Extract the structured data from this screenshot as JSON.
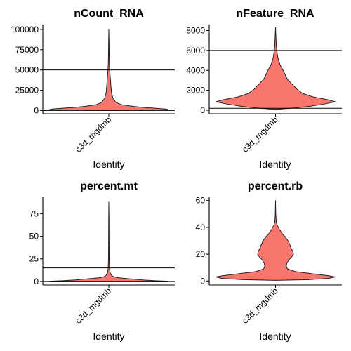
{
  "chart_data": [
    {
      "type": "violin",
      "title": "nCount_RNA",
      "xlabel": "Identity",
      "ylabel": "",
      "categories": [
        "c3d_mgdmb"
      ],
      "y_ticks": [
        0,
        25000,
        50000,
        75000,
        100000
      ],
      "y_tick_labels": [
        "0",
        "25000",
        "50000",
        "75000",
        "100000"
      ],
      "ylim": [
        -4000,
        106000
      ],
      "hlines": [
        50000,
        0
      ],
      "color": "#F8766D",
      "range": [
        0,
        100000
      ],
      "shape": [
        [
          0,
          0.0
        ],
        [
          400,
          0.62
        ],
        [
          900,
          0.92
        ],
        [
          1200,
          1.0
        ],
        [
          1800,
          0.95
        ],
        [
          2600,
          0.82
        ],
        [
          3600,
          0.62
        ],
        [
          5000,
          0.42
        ],
        [
          7000,
          0.22
        ],
        [
          10000,
          0.12
        ],
        [
          15000,
          0.07
        ],
        [
          22000,
          0.045
        ],
        [
          35000,
          0.03
        ],
        [
          45000,
          0.02
        ],
        [
          55000,
          0.01
        ],
        [
          70000,
          0.006
        ],
        [
          85000,
          0.004
        ],
        [
          100000,
          0.0
        ]
      ]
    },
    {
      "type": "violin",
      "title": "nFeature_RNA",
      "xlabel": "Identity",
      "ylabel": "",
      "categories": [
        "c3d_mgdmb"
      ],
      "y_ticks": [
        0,
        2000,
        4000,
        6000,
        8000
      ],
      "y_tick_labels": [
        "0",
        "2000",
        "4000",
        "6000",
        "8000"
      ],
      "ylim": [
        -350,
        8600
      ],
      "hlines": [
        6000,
        200
      ],
      "color": "#F8766D",
      "range": [
        80,
        8300
      ],
      "shape": [
        [
          80,
          0.0
        ],
        [
          200,
          0.26
        ],
        [
          400,
          0.58
        ],
        [
          650,
          0.84
        ],
        [
          850,
          1.0
        ],
        [
          1050,
          0.88
        ],
        [
          1350,
          0.62
        ],
        [
          1700,
          0.45
        ],
        [
          2100,
          0.36
        ],
        [
          2600,
          0.28
        ],
        [
          3100,
          0.2
        ],
        [
          3600,
          0.16
        ],
        [
          4100,
          0.12
        ],
        [
          4500,
          0.08
        ],
        [
          5000,
          0.05
        ],
        [
          5600,
          0.03
        ],
        [
          6300,
          0.015
        ],
        [
          7200,
          0.008
        ],
        [
          8300,
          0.0
        ]
      ]
    },
    {
      "type": "violin",
      "title": "percent.mt",
      "xlabel": "Identity",
      "ylabel": "",
      "categories": [
        "c3d_mgdmb"
      ],
      "y_ticks": [
        0,
        25,
        50,
        75
      ],
      "y_tick_labels": [
        "0",
        "25",
        "50",
        "75"
      ],
      "ylim": [
        -4,
        94
      ],
      "hlines": [
        15,
        0
      ],
      "color": "#F8766D",
      "range": [
        0,
        88
      ],
      "shape": [
        [
          0,
          0.0
        ],
        [
          0.2,
          1.0
        ],
        [
          0.8,
          0.78
        ],
        [
          1.5,
          0.58
        ],
        [
          2.5,
          0.42
        ],
        [
          3.5,
          0.24
        ],
        [
          4.5,
          0.12
        ],
        [
          5.5,
          0.07
        ],
        [
          7,
          0.045
        ],
        [
          10,
          0.02
        ],
        [
          15,
          0.01
        ],
        [
          25,
          0.006
        ],
        [
          50,
          0.004
        ],
        [
          70,
          0.003
        ],
        [
          88,
          0.0
        ]
      ]
    },
    {
      "type": "violin",
      "title": "percent.rb",
      "xlabel": "Identity",
      "ylabel": "",
      "categories": [
        "c3d_mgdmb"
      ],
      "y_ticks": [
        0,
        20,
        40,
        60
      ],
      "y_tick_labels": [
        "0",
        "20",
        "40",
        "60"
      ],
      "ylim": [
        -3,
        63
      ],
      "hlines": [],
      "color": "#F8766D",
      "range": [
        0.5,
        60
      ],
      "shape": [
        [
          0.5,
          0.0
        ],
        [
          1,
          0.55
        ],
        [
          2,
          0.9
        ],
        [
          3,
          1.0
        ],
        [
          4,
          0.88
        ],
        [
          5.5,
          0.6
        ],
        [
          7,
          0.33
        ],
        [
          9,
          0.2
        ],
        [
          11,
          0.18
        ],
        [
          13.5,
          0.19
        ],
        [
          16,
          0.23
        ],
        [
          18.5,
          0.28
        ],
        [
          20,
          0.3
        ],
        [
          22,
          0.29
        ],
        [
          24.5,
          0.26
        ],
        [
          27,
          0.24
        ],
        [
          30,
          0.21
        ],
        [
          33,
          0.16
        ],
        [
          36,
          0.1
        ],
        [
          39,
          0.06
        ],
        [
          41.5,
          0.03
        ],
        [
          44,
          0.012
        ],
        [
          50,
          0.004
        ],
        [
          60,
          0.0
        ]
      ]
    }
  ]
}
